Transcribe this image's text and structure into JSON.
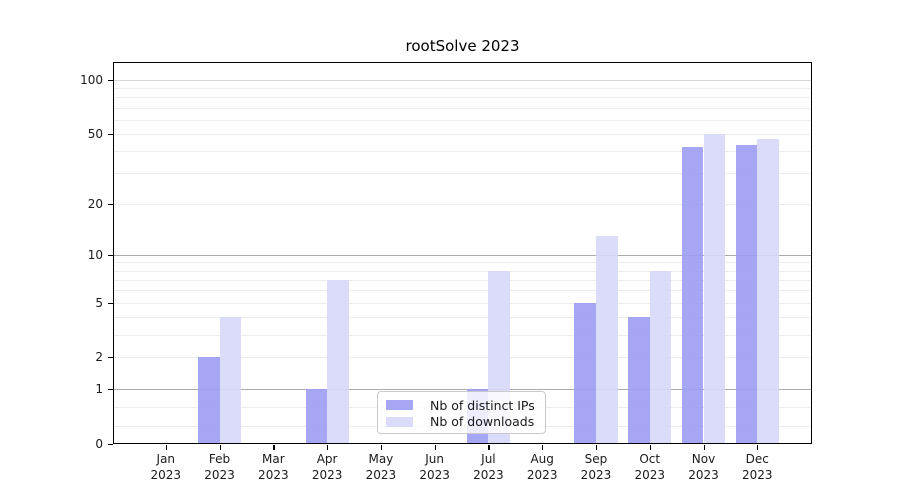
{
  "title": "rootSolve 2023",
  "legend": {
    "items": [
      {
        "label": "Nb of distinct IPs",
        "color": "#9c9cf4"
      },
      {
        "label": "Nb of downloads",
        "color": "#d7d7f9"
      }
    ]
  },
  "chart_data": {
    "type": "bar",
    "title": "rootSolve 2023",
    "xlabel": "",
    "ylabel": "",
    "yscale": "log1p",
    "categories": [
      "Jan",
      "Feb",
      "Mar",
      "Apr",
      "May",
      "Jun",
      "Jul",
      "Aug",
      "Sep",
      "Oct",
      "Nov",
      "Dec"
    ],
    "year_label": "2023",
    "series": [
      {
        "name": "Nb of distinct IPs",
        "color": "#9c9cf4",
        "values": [
          0,
          2,
          0,
          1,
          0,
          0,
          1,
          0,
          5,
          4,
          42,
          43
        ]
      },
      {
        "name": "Nb of downloads",
        "color": "#d7d7f9",
        "values": [
          0,
          4,
          0,
          7,
          0,
          0,
          8,
          0,
          13,
          8,
          50,
          47
        ]
      }
    ],
    "yticks": [
      0,
      1,
      2,
      5,
      10,
      20,
      50,
      100
    ],
    "ylim": [
      0,
      126
    ],
    "grid": {
      "major_values": [
        1,
        10
      ],
      "mid_values": [
        100
      ],
      "minor_values": [
        0.25,
        0.6,
        2,
        3,
        4,
        5,
        6,
        7,
        8,
        9,
        20,
        30,
        40,
        50,
        60,
        70,
        80,
        90
      ],
      "major_color": "#ababab",
      "mid_color": "#d6d6d6",
      "minor_color": "#ececec"
    },
    "legend_position": "lower center"
  }
}
